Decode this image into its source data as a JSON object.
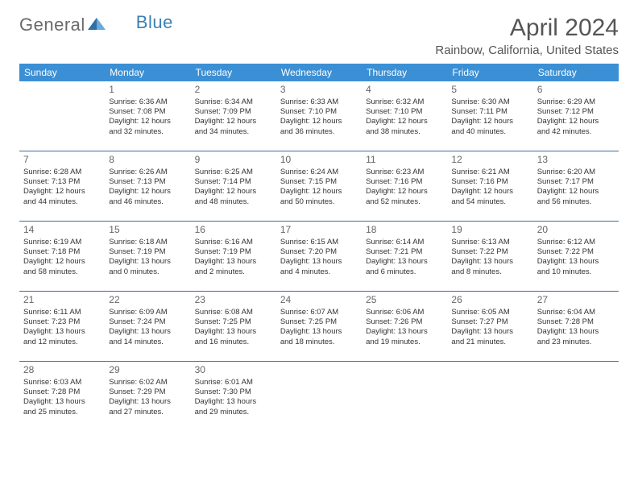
{
  "logo": {
    "text1": "General",
    "text2": "Blue"
  },
  "title": "April 2024",
  "location": "Rainbow, California, United States",
  "colors": {
    "header_bg": "#3b8fd4",
    "header_text": "#ffffff",
    "rule": "#3b6fa0",
    "title_color": "#555555",
    "body_text": "#333333"
  },
  "day_names": [
    "Sunday",
    "Monday",
    "Tuesday",
    "Wednesday",
    "Thursday",
    "Friday",
    "Saturday"
  ],
  "weeks": [
    [
      null,
      {
        "n": "1",
        "sr": "Sunrise: 6:36 AM",
        "ss": "Sunset: 7:08 PM",
        "d1": "Daylight: 12 hours",
        "d2": "and 32 minutes."
      },
      {
        "n": "2",
        "sr": "Sunrise: 6:34 AM",
        "ss": "Sunset: 7:09 PM",
        "d1": "Daylight: 12 hours",
        "d2": "and 34 minutes."
      },
      {
        "n": "3",
        "sr": "Sunrise: 6:33 AM",
        "ss": "Sunset: 7:10 PM",
        "d1": "Daylight: 12 hours",
        "d2": "and 36 minutes."
      },
      {
        "n": "4",
        "sr": "Sunrise: 6:32 AM",
        "ss": "Sunset: 7:10 PM",
        "d1": "Daylight: 12 hours",
        "d2": "and 38 minutes."
      },
      {
        "n": "5",
        "sr": "Sunrise: 6:30 AM",
        "ss": "Sunset: 7:11 PM",
        "d1": "Daylight: 12 hours",
        "d2": "and 40 minutes."
      },
      {
        "n": "6",
        "sr": "Sunrise: 6:29 AM",
        "ss": "Sunset: 7:12 PM",
        "d1": "Daylight: 12 hours",
        "d2": "and 42 minutes."
      }
    ],
    [
      {
        "n": "7",
        "sr": "Sunrise: 6:28 AM",
        "ss": "Sunset: 7:13 PM",
        "d1": "Daylight: 12 hours",
        "d2": "and 44 minutes."
      },
      {
        "n": "8",
        "sr": "Sunrise: 6:26 AM",
        "ss": "Sunset: 7:13 PM",
        "d1": "Daylight: 12 hours",
        "d2": "and 46 minutes."
      },
      {
        "n": "9",
        "sr": "Sunrise: 6:25 AM",
        "ss": "Sunset: 7:14 PM",
        "d1": "Daylight: 12 hours",
        "d2": "and 48 minutes."
      },
      {
        "n": "10",
        "sr": "Sunrise: 6:24 AM",
        "ss": "Sunset: 7:15 PM",
        "d1": "Daylight: 12 hours",
        "d2": "and 50 minutes."
      },
      {
        "n": "11",
        "sr": "Sunrise: 6:23 AM",
        "ss": "Sunset: 7:16 PM",
        "d1": "Daylight: 12 hours",
        "d2": "and 52 minutes."
      },
      {
        "n": "12",
        "sr": "Sunrise: 6:21 AM",
        "ss": "Sunset: 7:16 PM",
        "d1": "Daylight: 12 hours",
        "d2": "and 54 minutes."
      },
      {
        "n": "13",
        "sr": "Sunrise: 6:20 AM",
        "ss": "Sunset: 7:17 PM",
        "d1": "Daylight: 12 hours",
        "d2": "and 56 minutes."
      }
    ],
    [
      {
        "n": "14",
        "sr": "Sunrise: 6:19 AM",
        "ss": "Sunset: 7:18 PM",
        "d1": "Daylight: 12 hours",
        "d2": "and 58 minutes."
      },
      {
        "n": "15",
        "sr": "Sunrise: 6:18 AM",
        "ss": "Sunset: 7:19 PM",
        "d1": "Daylight: 13 hours",
        "d2": "and 0 minutes."
      },
      {
        "n": "16",
        "sr": "Sunrise: 6:16 AM",
        "ss": "Sunset: 7:19 PM",
        "d1": "Daylight: 13 hours",
        "d2": "and 2 minutes."
      },
      {
        "n": "17",
        "sr": "Sunrise: 6:15 AM",
        "ss": "Sunset: 7:20 PM",
        "d1": "Daylight: 13 hours",
        "d2": "and 4 minutes."
      },
      {
        "n": "18",
        "sr": "Sunrise: 6:14 AM",
        "ss": "Sunset: 7:21 PM",
        "d1": "Daylight: 13 hours",
        "d2": "and 6 minutes."
      },
      {
        "n": "19",
        "sr": "Sunrise: 6:13 AM",
        "ss": "Sunset: 7:22 PM",
        "d1": "Daylight: 13 hours",
        "d2": "and 8 minutes."
      },
      {
        "n": "20",
        "sr": "Sunrise: 6:12 AM",
        "ss": "Sunset: 7:22 PM",
        "d1": "Daylight: 13 hours",
        "d2": "and 10 minutes."
      }
    ],
    [
      {
        "n": "21",
        "sr": "Sunrise: 6:11 AM",
        "ss": "Sunset: 7:23 PM",
        "d1": "Daylight: 13 hours",
        "d2": "and 12 minutes."
      },
      {
        "n": "22",
        "sr": "Sunrise: 6:09 AM",
        "ss": "Sunset: 7:24 PM",
        "d1": "Daylight: 13 hours",
        "d2": "and 14 minutes."
      },
      {
        "n": "23",
        "sr": "Sunrise: 6:08 AM",
        "ss": "Sunset: 7:25 PM",
        "d1": "Daylight: 13 hours",
        "d2": "and 16 minutes."
      },
      {
        "n": "24",
        "sr": "Sunrise: 6:07 AM",
        "ss": "Sunset: 7:25 PM",
        "d1": "Daylight: 13 hours",
        "d2": "and 18 minutes."
      },
      {
        "n": "25",
        "sr": "Sunrise: 6:06 AM",
        "ss": "Sunset: 7:26 PM",
        "d1": "Daylight: 13 hours",
        "d2": "and 19 minutes."
      },
      {
        "n": "26",
        "sr": "Sunrise: 6:05 AM",
        "ss": "Sunset: 7:27 PM",
        "d1": "Daylight: 13 hours",
        "d2": "and 21 minutes."
      },
      {
        "n": "27",
        "sr": "Sunrise: 6:04 AM",
        "ss": "Sunset: 7:28 PM",
        "d1": "Daylight: 13 hours",
        "d2": "and 23 minutes."
      }
    ],
    [
      {
        "n": "28",
        "sr": "Sunrise: 6:03 AM",
        "ss": "Sunset: 7:28 PM",
        "d1": "Daylight: 13 hours",
        "d2": "and 25 minutes."
      },
      {
        "n": "29",
        "sr": "Sunrise: 6:02 AM",
        "ss": "Sunset: 7:29 PM",
        "d1": "Daylight: 13 hours",
        "d2": "and 27 minutes."
      },
      {
        "n": "30",
        "sr": "Sunrise: 6:01 AM",
        "ss": "Sunset: 7:30 PM",
        "d1": "Daylight: 13 hours",
        "d2": "and 29 minutes."
      },
      null,
      null,
      null,
      null
    ]
  ]
}
